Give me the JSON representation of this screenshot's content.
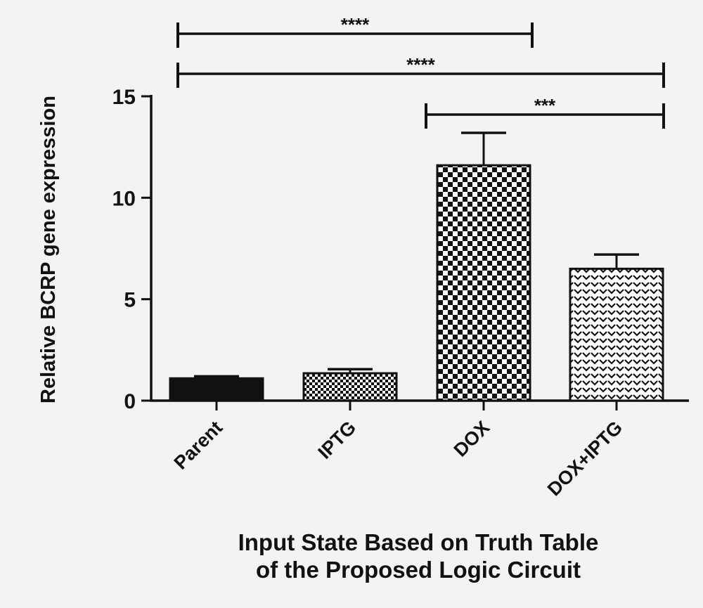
{
  "chart_data": {
    "type": "bar",
    "categories": [
      "Parent",
      "IPTG",
      "DOX",
      "DOX+IPTG"
    ],
    "values": [
      1.1,
      1.35,
      11.6,
      6.5
    ],
    "errors": [
      0.1,
      0.2,
      1.6,
      0.7
    ],
    "fills": [
      "solid-black",
      "dense-check",
      "large-check",
      "chevron"
    ],
    "ylabel": "Relative BCRP gene expression",
    "xlabel_lines": [
      "Input State Based on Truth Table",
      "of the Proposed Logic Circuit"
    ],
    "ylim": [
      0,
      15
    ],
    "yticks": [
      "0",
      "5",
      "10",
      "15"
    ],
    "ytick_values": [
      0,
      5,
      10,
      15
    ],
    "significance": [
      {
        "from": "Parent",
        "to": "DOX",
        "label": "****"
      },
      {
        "from": "Parent",
        "to": "DOX+IPTG",
        "label": "****"
      },
      {
        "from": "DOX",
        "to": "DOX+IPTG",
        "label": "***"
      }
    ],
    "bar_color": "#111111",
    "background_color": "#f3f3f3",
    "grid": false
  }
}
